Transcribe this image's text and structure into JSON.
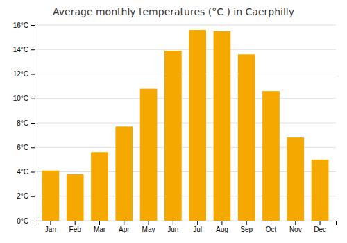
{
  "chart_data": {
    "type": "bar",
    "title": "Average monthly temperatures (°C ) in Caerphilly",
    "categories": [
      "Jan",
      "Feb",
      "Mar",
      "Apr",
      "May",
      "Jun",
      "Jul",
      "Aug",
      "Sep",
      "Oct",
      "Nov",
      "Dec"
    ],
    "values": [
      4.1,
      3.8,
      5.6,
      7.7,
      10.8,
      13.9,
      15.6,
      15.5,
      13.6,
      10.6,
      6.8,
      5.0
    ],
    "color": "#F5A800",
    "ylim": [
      0,
      16
    ],
    "yticks": [
      {
        "value": 0,
        "label": "0°C"
      },
      {
        "value": 2,
        "label": "2°C"
      },
      {
        "value": 4,
        "label": "4°C"
      },
      {
        "value": 6,
        "label": "6°C"
      },
      {
        "value": 8,
        "label": "8°C"
      },
      {
        "value": 10,
        "label": "10°C"
      },
      {
        "value": 12,
        "label": "12°C"
      },
      {
        "value": 14,
        "label": "14°C"
      },
      {
        "value": 16,
        "label": "16°C"
      }
    ],
    "grid": true
  }
}
